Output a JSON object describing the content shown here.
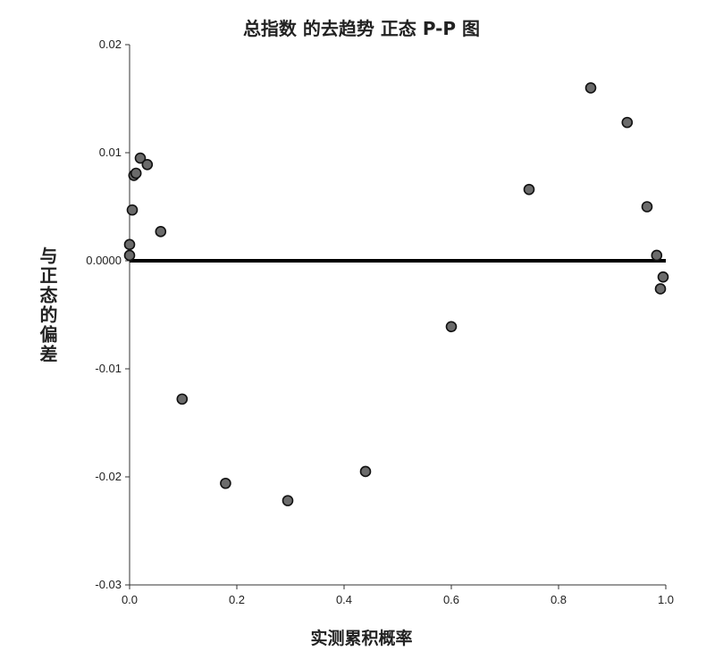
{
  "chart_data": {
    "type": "scatter",
    "title": "总指数 的去趋势 正态 P-P 图",
    "xlabel": "实测累积概率",
    "ylabel": "与正态的偏差",
    "xlim": [
      0,
      1
    ],
    "ylim": [
      -0.03,
      0.02
    ],
    "x_ticks": [
      0.0,
      0.2,
      0.4,
      0.6,
      0.8,
      1.0
    ],
    "x_tick_labels": [
      "0.0",
      "0.2",
      "0.4",
      "0.6",
      "0.8",
      "1.0"
    ],
    "y_ticks": [
      0.02,
      0.01,
      0.0,
      -0.01,
      -0.02,
      -0.03
    ],
    "y_tick_labels": [
      "0.02",
      "0.01",
      "0.0000",
      "-0.01",
      "-0.02",
      "-0.03"
    ],
    "reference_line": 0,
    "points": [
      {
        "x": 0.0,
        "y": 0.0015
      },
      {
        "x": 0.0,
        "y": 0.0005
      },
      {
        "x": 0.005,
        "y": 0.0047
      },
      {
        "x": 0.008,
        "y": 0.0079
      },
      {
        "x": 0.012,
        "y": 0.0081
      },
      {
        "x": 0.02,
        "y": 0.0095
      },
      {
        "x": 0.033,
        "y": 0.0089
      },
      {
        "x": 0.058,
        "y": 0.0027
      },
      {
        "x": 0.098,
        "y": -0.0128
      },
      {
        "x": 0.179,
        "y": -0.0206
      },
      {
        "x": 0.295,
        "y": -0.0222
      },
      {
        "x": 0.44,
        "y": -0.0195
      },
      {
        "x": 0.6,
        "y": -0.0061
      },
      {
        "x": 0.745,
        "y": 0.0066
      },
      {
        "x": 0.86,
        "y": 0.016
      },
      {
        "x": 0.928,
        "y": 0.0128
      },
      {
        "x": 0.965,
        "y": 0.005
      },
      {
        "x": 0.983,
        "y": 0.0005
      },
      {
        "x": 0.99,
        "y": -0.0026
      },
      {
        "x": 0.995,
        "y": -0.0015
      }
    ],
    "colors": {
      "point_fill": "#6b6b6b",
      "point_stroke": "#111111",
      "line": "#000000",
      "axis": "#333333"
    },
    "grid": false
  }
}
